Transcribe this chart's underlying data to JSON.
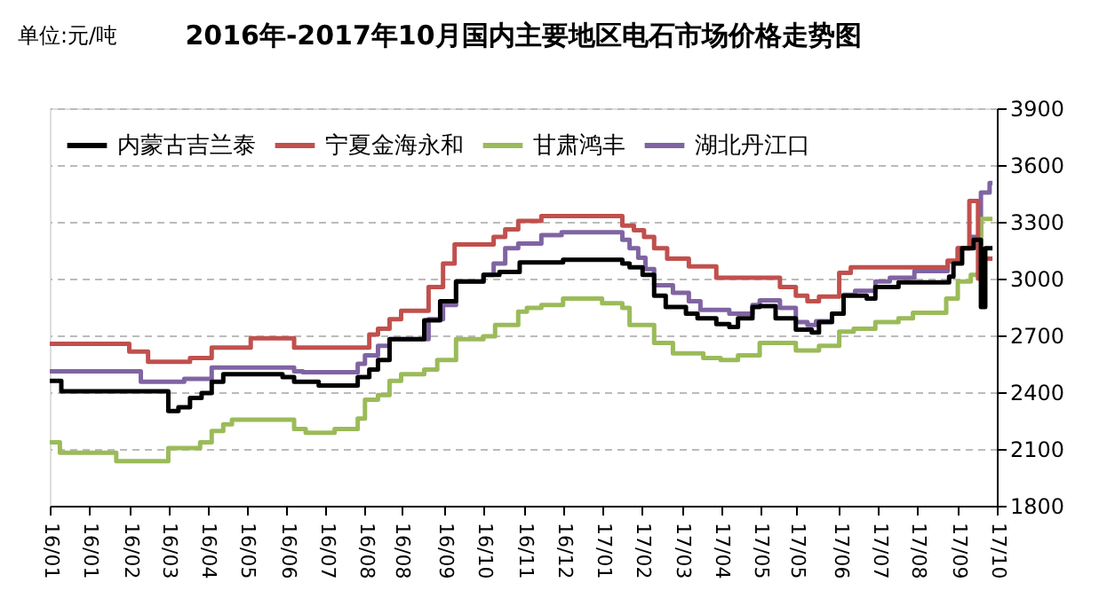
{
  "chart_data": {
    "type": "step",
    "title": "2016年-2017年10月国内主要地区电石市场价格走势图",
    "annotations": [
      "单位:元/吨"
    ],
    "xlim": [
      "2016-01-01",
      "2017-10-17"
    ],
    "xticks": [
      {
        "value": "2016-01-01",
        "label": "16/01"
      },
      {
        "value": "2016-01-28",
        "label": "16/01"
      },
      {
        "value": "2016-02-25",
        "label": "16/02"
      },
      {
        "value": "2016-03-23",
        "label": "16/03"
      },
      {
        "value": "2016-04-19",
        "label": "16/04"
      },
      {
        "value": "2016-05-16",
        "label": "16/05"
      },
      {
        "value": "2016-06-13",
        "label": "16/06"
      },
      {
        "value": "2016-07-10",
        "label": "16/07"
      },
      {
        "value": "2016-08-06",
        "label": "16/08"
      },
      {
        "value": "2016-08-31",
        "label": "16/08"
      },
      {
        "value": "2016-09-30",
        "label": "16/09"
      },
      {
        "value": "2016-10-27",
        "label": "16/10"
      },
      {
        "value": "2016-11-24",
        "label": "16/11"
      },
      {
        "value": "2016-12-21",
        "label": "16/12"
      },
      {
        "value": "2017-01-17",
        "label": "17/01"
      },
      {
        "value": "2017-02-13",
        "label": "17/02"
      },
      {
        "value": "2017-03-13",
        "label": "17/03"
      },
      {
        "value": "2017-04-09",
        "label": "17/04"
      },
      {
        "value": "2017-05-06",
        "label": "17/05"
      },
      {
        "value": "2017-05-31",
        "label": "17/05"
      },
      {
        "value": "2017-06-30",
        "label": "17/06"
      },
      {
        "value": "2017-07-27",
        "label": "17/07"
      },
      {
        "value": "2017-08-23",
        "label": "17/08"
      },
      {
        "value": "2017-09-20",
        "label": "17/09"
      },
      {
        "value": "2017-10-17",
        "label": "17/10"
      }
    ],
    "ylim": [
      1800,
      3900
    ],
    "yticks": [
      1800,
      2100,
      2400,
      2700,
      3000,
      3300,
      3600,
      3900
    ],
    "grid": "y",
    "legend": "top left",
    "marker": "none",
    "line_style": "solid",
    "series": [
      {
        "name": "内蒙古吉兰泰",
        "color": "#000000",
        "x": [
          "2016-01-01",
          "2016-01-09",
          "2016-03-23",
          "2016-03-30",
          "2016-04-07",
          "2016-04-15",
          "2016-04-22",
          "2016-04-30",
          "2016-06-10",
          "2016-06-18",
          "2016-07-05",
          "2016-08-01",
          "2016-08-09",
          "2016-08-15",
          "2016-08-23",
          "2016-09-16",
          "2016-09-27",
          "2016-10-08",
          "2016-10-27",
          "2016-11-07",
          "2016-11-21",
          "2016-12-21",
          "2017-01-31",
          "2017-02-05",
          "2017-02-14",
          "2017-02-22",
          "2017-03-02",
          "2017-03-16",
          "2017-03-24",
          "2017-04-06",
          "2017-04-15",
          "2017-04-21",
          "2017-05-01",
          "2017-05-06",
          "2017-05-17",
          "2017-05-31",
          "2017-06-11",
          "2017-06-16",
          "2017-06-25",
          "2017-07-03",
          "2017-07-19",
          "2017-07-25",
          "2017-08-10",
          "2017-09-14",
          "2017-09-17",
          "2017-09-23",
          "2017-10-01",
          "2017-10-06",
          "2017-10-09",
          "2017-10-14"
        ],
        "values": [
          2460,
          2405,
          2300,
          2320,
          2370,
          2395,
          2455,
          2495,
          2480,
          2455,
          2435,
          2480,
          2520,
          2570,
          2680,
          2780,
          2880,
          2985,
          3020,
          3035,
          3085,
          3100,
          3080,
          3060,
          3020,
          2910,
          2850,
          2815,
          2790,
          2760,
          2745,
          2790,
          2850,
          2855,
          2790,
          2730,
          2715,
          2770,
          2815,
          2910,
          2895,
          2955,
          2980,
          3010,
          3080,
          3160,
          3205,
          2850,
          3160,
          3160
        ]
      },
      {
        "name": "宁夏金海永和",
        "color": "#c0504d",
        "x": [
          "2016-01-01",
          "2016-02-25",
          "2016-03-09",
          "2016-04-07",
          "2016-04-22",
          "2016-05-19",
          "2016-06-18",
          "2016-08-09",
          "2016-08-15",
          "2016-08-23",
          "2016-08-31",
          "2016-09-19",
          "2016-09-29",
          "2016-10-07",
          "2016-11-03",
          "2016-11-11",
          "2016-11-20",
          "2016-12-06",
          "2017-01-31",
          "2017-02-08",
          "2017-02-15",
          "2017-02-22",
          "2017-03-03",
          "2017-03-18",
          "2017-04-06",
          "2017-05-20",
          "2017-05-31",
          "2017-06-08",
          "2017-06-16",
          "2017-06-30",
          "2017-07-08",
          "2017-09-13",
          "2017-09-20",
          "2017-09-28",
          "2017-10-04",
          "2017-10-08",
          "2017-10-14"
        ],
        "values": [
          2655,
          2615,
          2560,
          2580,
          2635,
          2685,
          2635,
          2705,
          2735,
          2785,
          2830,
          2955,
          3080,
          3180,
          3220,
          3260,
          3305,
          3330,
          3280,
          3255,
          3220,
          3160,
          3105,
          3065,
          3005,
          2955,
          2910,
          2880,
          2905,
          3030,
          3060,
          3095,
          3160,
          3410,
          3000,
          3105,
          3105
        ]
      },
      {
        "name": "甘肃鸿丰",
        "color": "#9bbb59",
        "x": [
          "2016-01-01",
          "2016-01-08",
          "2016-02-16",
          "2016-03-23",
          "2016-04-14",
          "2016-04-22",
          "2016-04-30",
          "2016-05-06",
          "2016-06-18",
          "2016-06-26",
          "2016-07-16",
          "2016-08-01",
          "2016-08-06",
          "2016-08-15",
          "2016-08-23",
          "2016-08-31",
          "2016-09-16",
          "2016-09-25",
          "2016-10-08",
          "2016-10-27",
          "2016-11-04",
          "2016-11-20",
          "2016-11-26",
          "2016-12-06",
          "2016-12-21",
          "2017-01-17",
          "2017-01-31",
          "2017-02-05",
          "2017-02-22",
          "2017-03-07",
          "2017-03-28",
          "2017-04-09",
          "2017-04-21",
          "2017-05-06",
          "2017-05-31",
          "2017-06-16",
          "2017-06-30",
          "2017-07-10",
          "2017-07-25",
          "2017-08-10",
          "2017-08-20",
          "2017-09-12",
          "2017-09-20",
          "2017-09-29",
          "2017-10-06",
          "2017-10-14"
        ],
        "values": [
          2135,
          2080,
          2035,
          2105,
          2135,
          2195,
          2230,
          2255,
          2205,
          2185,
          2205,
          2260,
          2360,
          2385,
          2460,
          2495,
          2520,
          2570,
          2680,
          2695,
          2755,
          2825,
          2845,
          2860,
          2895,
          2870,
          2845,
          2755,
          2660,
          2605,
          2580,
          2570,
          2595,
          2660,
          2620,
          2645,
          2720,
          2735,
          2770,
          2790,
          2820,
          2895,
          2985,
          3020,
          3315,
          3315
        ]
      },
      {
        "name": "湖北丹江口",
        "color": "#8064a2",
        "x": [
          "2016-01-01",
          "2016-03-04",
          "2016-04-03",
          "2016-04-22",
          "2016-06-18",
          "2016-06-24",
          "2016-08-01",
          "2016-08-06",
          "2016-08-15",
          "2016-08-23",
          "2016-09-19",
          "2016-09-29",
          "2016-10-08",
          "2016-10-27",
          "2016-11-03",
          "2016-11-11",
          "2016-11-20",
          "2016-12-06",
          "2016-12-20",
          "2017-01-31",
          "2017-02-05",
          "2017-02-11",
          "2017-02-16",
          "2017-02-22",
          "2017-03-07",
          "2017-03-18",
          "2017-03-26",
          "2017-04-15",
          "2017-05-01",
          "2017-05-06",
          "2017-05-20",
          "2017-05-31",
          "2017-06-08",
          "2017-06-14",
          "2017-06-25",
          "2017-07-03",
          "2017-07-11",
          "2017-07-25",
          "2017-08-04",
          "2017-08-21",
          "2017-09-13",
          "2017-09-20",
          "2017-09-29",
          "2017-10-06",
          "2017-10-12",
          "2017-10-14"
        ],
        "values": [
          2510,
          2455,
          2470,
          2530,
          2510,
          2505,
          2550,
          2595,
          2645,
          2680,
          2785,
          2860,
          2985,
          3020,
          3080,
          3160,
          3185,
          3230,
          3245,
          3205,
          3160,
          3110,
          3050,
          2965,
          2925,
          2880,
          2835,
          2815,
          2860,
          2885,
          2845,
          2770,
          2755,
          2775,
          2815,
          2915,
          2935,
          2985,
          3005,
          3040,
          3090,
          3160,
          3220,
          3455,
          3505,
          3505
        ]
      }
    ]
  }
}
